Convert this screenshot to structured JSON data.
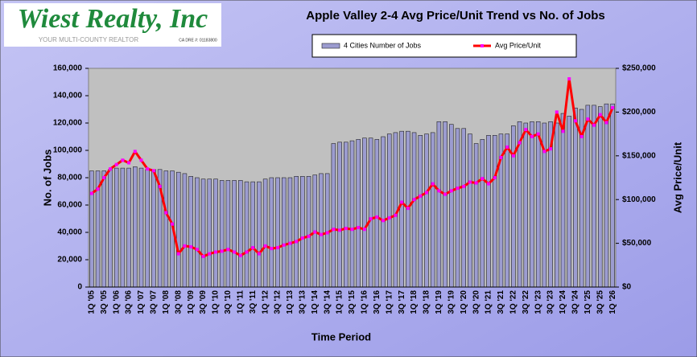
{
  "logo": {
    "name": "Wiest Realty, Inc",
    "tagline": "YOUR MULTI-COUNTY REALTOR",
    "license": "CA DRE #: 01183800"
  },
  "chart_data": {
    "type": "bar-line",
    "title": "Apple Valley 2-4 Avg Price/Unit Trend vs No. of Jobs",
    "xlabel": "Time Period",
    "ylabel": "No. of Jobs",
    "y2label": "Avg Price/Unit",
    "categories": [
      "1Q '05",
      null,
      "3Q '05",
      null,
      "1Q '06",
      null,
      "3Q '06",
      null,
      "1Q '07",
      null,
      "3Q '07",
      null,
      "1Q '08",
      null,
      "3Q '08",
      null,
      "1Q '09",
      null,
      "3Q '09",
      null,
      "1Q '10",
      null,
      "3Q '10",
      null,
      "1Q '11",
      null,
      "3Q '11",
      null,
      "1Q '12",
      null,
      "3Q '12",
      null,
      "1Q '13",
      null,
      "3Q '13",
      null,
      "1Q '14",
      null,
      "3Q '14",
      null,
      "1Q '15",
      null,
      "3Q '15",
      null,
      "1Q '16",
      null,
      "3Q '16",
      null,
      "1Q '17",
      null,
      "3Q '17",
      null,
      "1Q '18",
      null,
      "3Q '18",
      null,
      "1Q '19",
      null,
      "3Q '19",
      null,
      "1Q '20",
      null,
      "3Q '20",
      null,
      "1Q '21",
      null,
      "3Q '21",
      null,
      "1Q '22",
      null,
      "3Q '22",
      null,
      "1Q '23",
      null,
      "3Q '23",
      null,
      "1Q '24",
      null,
      "3Q '24",
      null,
      "1Q '25",
      null,
      "3Q '25",
      null,
      "1Q '26"
    ],
    "series": [
      {
        "name": "4 Cities Number of Jobs",
        "kind": "bar",
        "color": "#9c9cd0",
        "values": [
          85000,
          85000,
          85000,
          86000,
          87000,
          87000,
          87000,
          88000,
          87000,
          86000,
          86000,
          86000,
          85000,
          85000,
          84000,
          83000,
          81000,
          80000,
          79000,
          79000,
          79000,
          78000,
          78000,
          78000,
          78000,
          77000,
          77000,
          77000,
          79000,
          80000,
          80000,
          80000,
          80000,
          81000,
          81000,
          81000,
          82000,
          83000,
          83000,
          105000,
          106000,
          106000,
          107000,
          108000,
          109000,
          109000,
          108000,
          110000,
          112000,
          113000,
          114000,
          114000,
          113000,
          111000,
          112000,
          113000,
          121000,
          121000,
          119000,
          116000,
          116000,
          112000,
          105000,
          108000,
          111000,
          111000,
          112000,
          112000,
          118000,
          121000,
          120000,
          121000,
          121000,
          120000,
          121000,
          120000,
          127000,
          125000,
          131000,
          130000,
          133000,
          133000,
          132000,
          134000,
          134000
        ]
      },
      {
        "name": "Avg Price/Unit",
        "kind": "line",
        "axis": "y2",
        "color": "#ff0000",
        "marker_color": "#ff00ff",
        "values": [
          107000,
          112000,
          125000,
          135000,
          140000,
          145000,
          142000,
          155000,
          145000,
          135000,
          133000,
          115000,
          85000,
          72000,
          38000,
          47000,
          46000,
          43000,
          35000,
          38000,
          40000,
          41000,
          43000,
          40000,
          36000,
          40000,
          45000,
          38000,
          47000,
          44000,
          45000,
          48000,
          50000,
          52000,
          56000,
          58000,
          63000,
          60000,
          62000,
          66000,
          65000,
          67000,
          66000,
          68000,
          66000,
          78000,
          80000,
          76000,
          79000,
          82000,
          97000,
          90000,
          100000,
          104000,
          108000,
          118000,
          110000,
          106000,
          110000,
          113000,
          115000,
          120000,
          119000,
          124000,
          118000,
          125000,
          148000,
          160000,
          150000,
          165000,
          180000,
          172000,
          175000,
          155000,
          158000,
          200000,
          178000,
          238000,
          190000,
          172000,
          192000,
          185000,
          197000,
          188000,
          205000
        ]
      }
    ],
    "ylim": [
      0,
      160000
    ],
    "yticks": [
      0,
      {
        "value": 20000,
        "label": "20,000"
      },
      {
        "value": 40000,
        "label": "40,000"
      },
      {
        "value": 60000,
        "label": "60,000"
      },
      {
        "value": 80000,
        "label": "80,000"
      },
      {
        "value": 100000,
        "label": "100,000"
      },
      {
        "value": 120000,
        "label": "120,000"
      },
      {
        "value": 140000,
        "label": "140,000"
      },
      {
        "value": 160000,
        "label": "160,000"
      }
    ],
    "y2lim": [
      0,
      250000
    ],
    "y2ticks": [
      {
        "value": 0,
        "label": "$0"
      },
      {
        "value": 50000,
        "label": "$50,000"
      },
      {
        "value": 100000,
        "label": "$100,000"
      },
      {
        "value": 150000,
        "label": "$150,000"
      },
      {
        "value": 200000,
        "label": "$200,000"
      },
      {
        "value": 250000,
        "label": "$250,000"
      }
    ],
    "grid": false,
    "legend": "top"
  }
}
